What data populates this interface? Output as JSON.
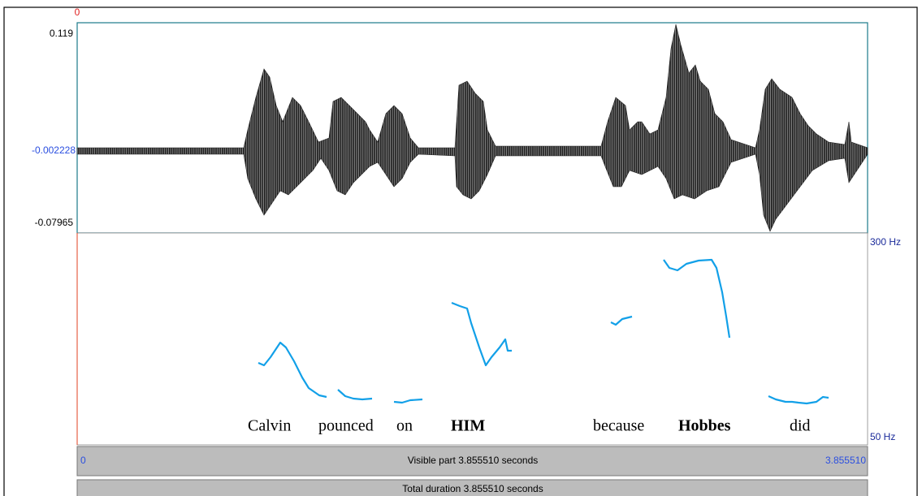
{
  "cursor_time": "0",
  "waveform": {
    "max": "0.119",
    "cursor_value": "-0.002228",
    "min": "-0.07965"
  },
  "pitch": {
    "top": "300 Hz",
    "bottom": "50 Hz"
  },
  "words": [
    {
      "text": "Calvin",
      "bold": false
    },
    {
      "text": "pounced",
      "bold": false
    },
    {
      "text": "on",
      "bold": false
    },
    {
      "text": "HIM",
      "bold": true
    },
    {
      "text": "because",
      "bold": false
    },
    {
      "text": "Hobbes",
      "bold": true
    },
    {
      "text": "did",
      "bold": false
    }
  ],
  "bars": {
    "visible_start": "0",
    "visible_label": "Visible part 3.855510 seconds",
    "visible_end": "3.855510",
    "total_label": "Total duration 3.855510 seconds"
  }
}
